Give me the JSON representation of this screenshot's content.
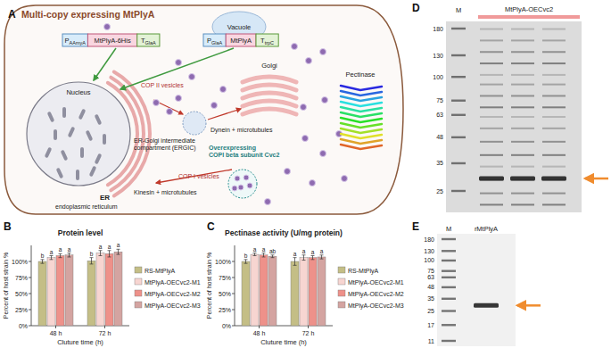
{
  "diagram": {
    "label": "A",
    "title": "Multi-copy expressing MtPlyA",
    "constructs": [
      [
        {
          "text": "P",
          "sub": "AAmyA"
        },
        {
          "text": "MtPlyA-6His"
        },
        {
          "text": "T",
          "sub": "GlaA"
        }
      ],
      [
        {
          "text": "P",
          "sub": "GlaA"
        },
        {
          "text": "MtPlyA"
        },
        {
          "text": "T",
          "sub": "trpC"
        }
      ]
    ],
    "nucleus": "Nucleus",
    "er": "ER",
    "er_full": "endoplasmic reticulum",
    "cop2": "COP II vesicles",
    "vacuole": "Vacuole",
    "golgi": "Golgi",
    "ergic": [
      "ER-Golgi intermediate",
      "compartment (ERGIC)"
    ],
    "dynein": "Dynein + microtubules",
    "kinesin": "Kinesin + microtubules",
    "cop1": "COP I vesicles",
    "overexpressing": [
      "Overexpressing",
      "COPI beta subunit Cvc2"
    ],
    "pectinase": "Pectinase"
  },
  "chart_data": [
    {
      "type": "bar",
      "panel": "B",
      "title": "Protein level",
      "x_label": "Cluture time (h)",
      "y_label": "Percent of host strain %",
      "categories": [
        "48 h",
        "72 h"
      ],
      "ylim": [
        0,
        125
      ],
      "yticks": [
        {
          "value": 0,
          "label": "0%"
        },
        {
          "value": 25,
          "label": "25%"
        },
        {
          "value": 50,
          "label": "50%"
        },
        {
          "value": 75,
          "label": "75%"
        },
        {
          "value": 100,
          "label": "100%"
        }
      ],
      "grid": false,
      "legend": "right",
      "series": [
        {
          "name": "RS-MtPlyA",
          "color": "#c4be86",
          "values": [
            100,
            101
          ],
          "error": [
            3,
            5
          ],
          "letters": [
            "b",
            "b"
          ]
        },
        {
          "name": "MtPlyA-OECvc2-M1",
          "color": "#f7d5d1",
          "values": [
            106,
            113
          ],
          "error": [
            3,
            4
          ],
          "letters": [
            "a",
            "a"
          ]
        },
        {
          "name": "MtPlyA-OECvc2-M2",
          "color": "#ee918a",
          "values": [
            109,
            112
          ],
          "error": [
            3,
            5
          ],
          "letters": [
            "a",
            "a"
          ]
        },
        {
          "name": "MtPlyA-OECvc2-M3",
          "color": "#d4a4a1",
          "values": [
            110,
            115
          ],
          "error": [
            3,
            4
          ],
          "letters": [
            "a",
            "a"
          ]
        }
      ]
    },
    {
      "type": "bar",
      "panel": "C",
      "title": "Pectinase activity (U/mg protein)",
      "x_label": "Cluture time (h)",
      "y_label": "Percent of host strain %",
      "categories": [
        "48 h",
        "72 h"
      ],
      "ylim": [
        0,
        125
      ],
      "yticks": [
        {
          "value": 0,
          "label": "0%"
        },
        {
          "value": 25,
          "label": "25%"
        },
        {
          "value": 50,
          "label": "50%"
        },
        {
          "value": 75,
          "label": "75%"
        },
        {
          "value": 100,
          "label": "100%"
        }
      ],
      "grid": false,
      "legend": "right",
      "series": [
        {
          "name": "RS-MtPlyA",
          "color": "#c4be86",
          "values": [
            100,
            100
          ],
          "error": [
            3,
            6
          ],
          "letters": [
            "b",
            "a"
          ]
        },
        {
          "name": "MtPlyA-OECvc2-M1",
          "color": "#f7d5d1",
          "values": [
            111,
            106
          ],
          "error": [
            2,
            4
          ],
          "letters": [
            "a",
            "a"
          ]
        },
        {
          "name": "MtPlyA-OECvc2-M2",
          "color": "#ee918a",
          "values": [
            110,
            106
          ],
          "error": [
            3,
            3
          ],
          "letters": [
            "a",
            "a"
          ]
        },
        {
          "name": "MtPlyA-OECvc2-M3",
          "color": "#d4a4a1",
          "values": [
            108,
            107
          ],
          "error": [
            2,
            3
          ],
          "letters": [
            "ab",
            "a"
          ]
        }
      ]
    }
  ],
  "gels": [
    {
      "label": "D",
      "lane_header": "MtPlyA-OECvc2",
      "marker": "M",
      "marker_kda": [
        180,
        130,
        100,
        75,
        63,
        48,
        35,
        25
      ]
    },
    {
      "label": "E",
      "lane_header": "rMtPlyA",
      "marker": "M",
      "marker_kda": [
        180,
        130,
        100,
        75,
        63,
        48,
        35,
        25,
        17,
        11
      ]
    }
  ]
}
